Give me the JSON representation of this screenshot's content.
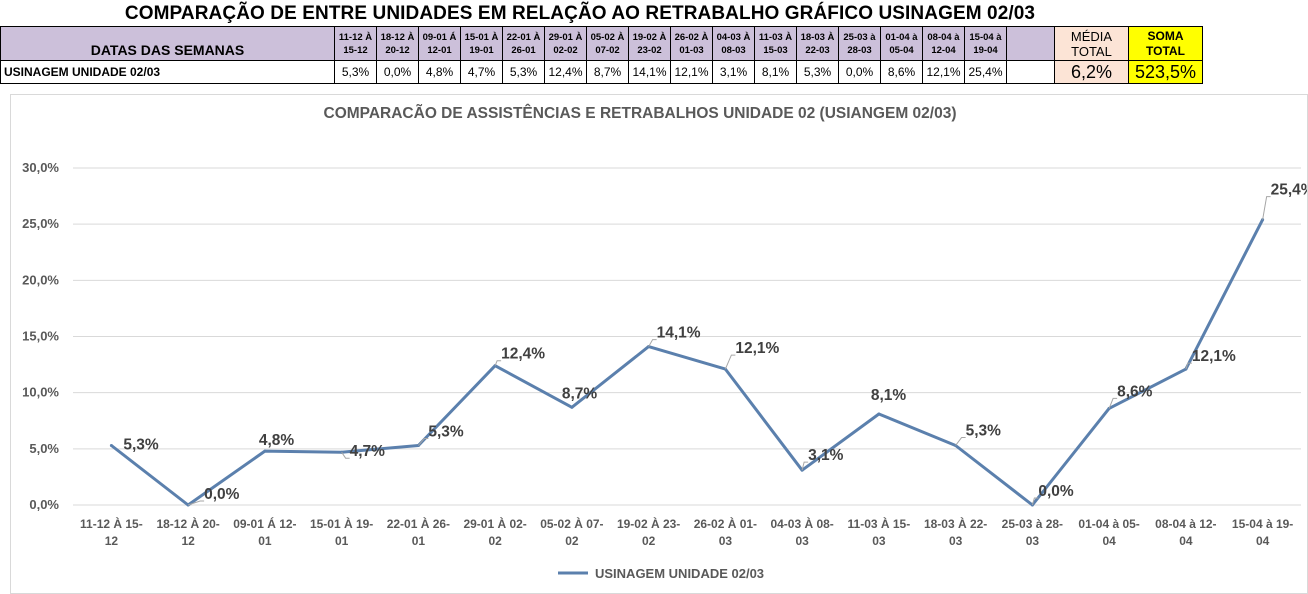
{
  "sheet": {
    "title": "COMPARAÇÃO DE ENTRE UNIDADES EM RELAÇÃO AO RETRABALHO GRÁFICO USINAGEM 02/03",
    "header_label": "DATAS DAS SEMANAS",
    "row_label": "USINAGEM UNIDADE 02/03",
    "weeks": [
      {
        "top": "11-12 À",
        "bottom": "15-12"
      },
      {
        "top": "18-12 À",
        "bottom": "20-12"
      },
      {
        "top": "09-01 Á",
        "bottom": "12-01"
      },
      {
        "top": "15-01 À",
        "bottom": "19-01"
      },
      {
        "top": "22-01 À",
        "bottom": "26-01"
      },
      {
        "top": "29-01 À",
        "bottom": "02-02"
      },
      {
        "top": "05-02 À",
        "bottom": "07-02"
      },
      {
        "top": "19-02 À",
        "bottom": "23-02"
      },
      {
        "top": "26-02 À",
        "bottom": "01-03"
      },
      {
        "top": "04-03 À",
        "bottom": "08-03"
      },
      {
        "top": "11-03 À",
        "bottom": "15-03"
      },
      {
        "top": "18-03 À",
        "bottom": "22-03"
      },
      {
        "top": "25-03 à",
        "bottom": "28-03"
      },
      {
        "top": "01-04 à",
        "bottom": "05-04"
      },
      {
        "top": "08-04 à",
        "bottom": "12-04"
      },
      {
        "top": "15-04 à",
        "bottom": "19-04"
      }
    ],
    "values_text": [
      "5,3%",
      "0,0%",
      "4,8%",
      "4,7%",
      "5,3%",
      "12,4%",
      "8,7%",
      "14,1%",
      "12,1%",
      "3,1%",
      "8,1%",
      "5,3%",
      "0,0%",
      "8,6%",
      "12,1%",
      "25,4%"
    ],
    "media": {
      "label_1": "MÉDIA",
      "label_2": "TOTAL",
      "value": "6,2%"
    },
    "soma": {
      "label_1": "SOMA",
      "label_2": "TOTAL",
      "value": "523,5%"
    },
    "colors": {
      "header_bg": "#ccc0da",
      "media_bg": "#fce4d6",
      "soma_bg": "#ffff00"
    }
  },
  "chart_data": {
    "type": "line",
    "title": "COMPARACÃO DE ASSISTÊNCIAS E RETRABALHOS UNIDADE 02  (USIANGEM 02/03)",
    "categories": [
      [
        "11-12 À 15-",
        "12"
      ],
      [
        "18-12 À 20-",
        "12"
      ],
      [
        "09-01 Á 12-",
        "01"
      ],
      [
        "15-01 À 19-",
        "01"
      ],
      [
        "22-01 À 26-",
        "01"
      ],
      [
        "29-01 À 02-",
        "02"
      ],
      [
        "05-02 À 07-",
        "02"
      ],
      [
        "19-02 À 23-",
        "02"
      ],
      [
        "26-02 À 01-",
        "03"
      ],
      [
        "04-03 À 08-",
        "03"
      ],
      [
        "11-03 À 15-",
        "03"
      ],
      [
        "18-03 À 22-",
        "03"
      ],
      [
        "25-03 à 28-",
        "03"
      ],
      [
        "01-04 à 05-",
        "04"
      ],
      [
        "08-04 à 12-",
        "04"
      ],
      [
        "15-04 à 19-",
        "04"
      ]
    ],
    "series": [
      {
        "name": "USINAGEM UNIDADE 02/03",
        "values": [
          5.3,
          0.0,
          4.8,
          4.7,
          5.3,
          12.4,
          8.7,
          14.1,
          12.1,
          3.1,
          8.1,
          5.3,
          0.0,
          8.6,
          12.1,
          25.4
        ],
        "labels": [
          "5,3%",
          "0,0%",
          "4,8%",
          "4,7%",
          "5,3%",
          "12,4%",
          "8,7%",
          "14,1%",
          "12,1%",
          "3,1%",
          "8,1%",
          "5,3%",
          "0,0%",
          "8,6%",
          "12,1%",
          "25,4%"
        ],
        "color": "#5b80ad"
      }
    ],
    "ylim": [
      0,
      30
    ],
    "yticks": [
      "0,0%",
      "5,0%",
      "10,0%",
      "15,0%",
      "20,0%",
      "25,0%",
      "30,0%"
    ],
    "xlabel": "",
    "ylabel": "",
    "grid": true,
    "legend": "bottom"
  }
}
